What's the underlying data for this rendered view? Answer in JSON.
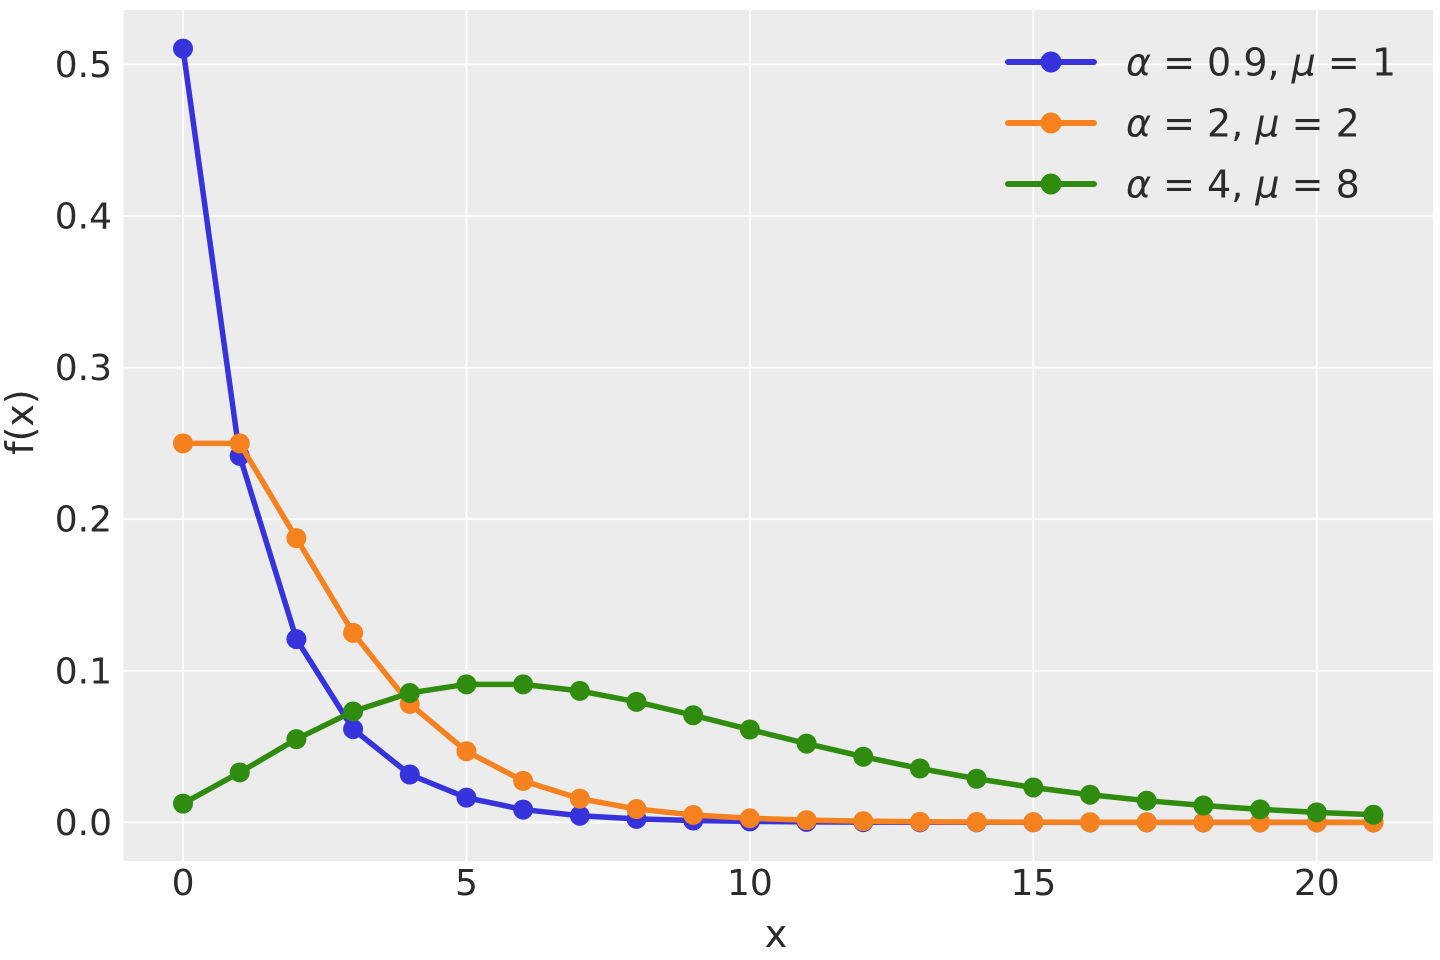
{
  "chart_data": {
    "type": "line",
    "xlabel": "x",
    "ylabel": "f(x)",
    "x": [
      0,
      1,
      2,
      3,
      4,
      5,
      6,
      7,
      8,
      9,
      10,
      11,
      12,
      13,
      14,
      15,
      16,
      17,
      18,
      19,
      20,
      21
    ],
    "series": [
      {
        "name": "α = 0.9, μ = 1",
        "alpha": 0.9,
        "mu": 1,
        "color": "#3733dc",
        "values": [
          0.51043,
          0.241783,
          0.120891,
          0.061506,
          0.031562,
          0.016279,
          0.008425,
          0.004371,
          0.002272,
          0.001182,
          0.000616,
          0.000321,
          0.000168,
          8.77e-05,
          4.58e-05,
          2.4e-05,
          1.25e-05,
          6.6e-06,
          3.4e-06,
          1.8e-06,
          9e-07,
          5e-07
        ]
      },
      {
        "name": "α = 2, μ = 2",
        "alpha": 2,
        "mu": 2,
        "color": "#f5821f",
        "values": [
          0.25,
          0.25,
          0.1875,
          0.125,
          0.078125,
          0.046875,
          0.027344,
          0.015625,
          0.008789,
          0.004883,
          0.002686,
          0.001465,
          0.000793,
          0.000427,
          0.000229,
          0.000122,
          6.48e-05,
          3.43e-05,
          1.81e-05,
          9.5e-06,
          5e-06,
          2.6e-06
        ]
      },
      {
        "name": "α = 4, μ = 8",
        "alpha": 4,
        "mu": 8,
        "color": "#2f8c0e",
        "values": [
          0.012346,
          0.032922,
          0.05487,
          0.07316,
          0.085353,
          0.091043,
          0.091043,
          0.086707,
          0.079482,
          0.070651,
          0.061231,
          0.051954,
          0.043295,
          0.035524,
          0.028757,
          0.023006,
          0.018212,
          0.014286,
          0.011111,
          0.008577,
          0.006576,
          0.00501
        ]
      }
    ],
    "xlim": [
      -1.05,
      22.05
    ],
    "ylim": [
      -0.0255,
      0.5359
    ],
    "xticks": [
      0,
      5,
      10,
      15,
      20
    ],
    "xtick_labels": [
      "0",
      "5",
      "10",
      "15",
      "20"
    ],
    "yticks": [
      0.0,
      0.1,
      0.2,
      0.3,
      0.4,
      0.5
    ],
    "ytick_labels": [
      "0.0",
      "0.1",
      "0.2",
      "0.3",
      "0.4",
      "0.5"
    ],
    "grid": true,
    "legend_position": "upper right",
    "colors": {
      "plot_background": "#ececec",
      "gridline": "#ffffff",
      "text": "#2b2b2b"
    }
  }
}
